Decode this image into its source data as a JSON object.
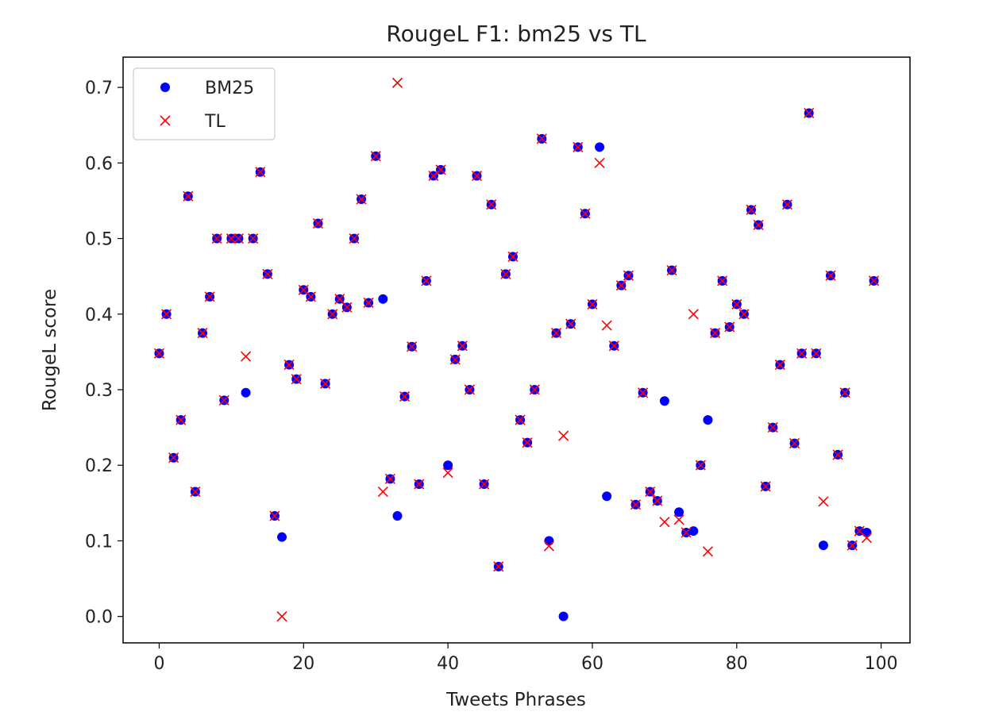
{
  "chart_data": {
    "type": "scatter",
    "title": "RougeL F1:  bm25 vs TL",
    "xlabel": "Tweets Phrases",
    "ylabel": "RougeL score",
    "xlim": [
      -5,
      104
    ],
    "ylim": [
      -0.035,
      0.74
    ],
    "xticks": [
      0,
      20,
      40,
      60,
      80,
      100
    ],
    "yticks": [
      0.0,
      0.1,
      0.2,
      0.3,
      0.4,
      0.5,
      0.6,
      0.7
    ],
    "ytick_labels": [
      "0.0",
      "0.1",
      "0.2",
      "0.3",
      "0.4",
      "0.5",
      "0.6",
      "0.7"
    ],
    "grid": false,
    "legend_position": "top-left",
    "series": [
      {
        "name": "BM25",
        "marker": "circle",
        "color": "#0000ff",
        "x": [
          0,
          1,
          2,
          3,
          4,
          5,
          6,
          7,
          8,
          9,
          10,
          11,
          12,
          13,
          14,
          15,
          16,
          17,
          18,
          19,
          20,
          21,
          22,
          23,
          24,
          25,
          26,
          27,
          28,
          29,
          30,
          31,
          32,
          33,
          34,
          35,
          36,
          37,
          38,
          39,
          40,
          41,
          42,
          43,
          44,
          45,
          46,
          47,
          48,
          49,
          50,
          51,
          52,
          53,
          54,
          55,
          56,
          57,
          58,
          59,
          60,
          61,
          62,
          63,
          64,
          65,
          66,
          67,
          68,
          69,
          70,
          71,
          72,
          73,
          74,
          75,
          76,
          77,
          78,
          79,
          80,
          81,
          82,
          83,
          84,
          85,
          86,
          87,
          88,
          89,
          90,
          91,
          92,
          93,
          94,
          95,
          96,
          97,
          98,
          99
        ],
        "y": [
          0.348,
          0.4,
          0.21,
          0.26,
          0.556,
          0.165,
          0.375,
          0.423,
          0.5,
          0.286,
          0.5,
          0.5,
          0.296,
          0.5,
          0.588,
          0.453,
          0.133,
          0.105,
          0.333,
          0.314,
          0.432,
          0.423,
          0.52,
          0.308,
          0.4,
          0.42,
          0.409,
          0.5,
          0.552,
          0.415,
          0.609,
          0.42,
          0.182,
          0.133,
          0.291,
          0.357,
          0.175,
          0.444,
          0.583,
          0.591,
          0.2,
          0.34,
          0.358,
          0.3,
          0.583,
          0.175,
          0.545,
          0.066,
          0.453,
          0.476,
          0.26,
          0.23,
          0.3,
          0.632,
          0.1,
          0.375,
          0.0,
          0.387,
          0.621,
          0.533,
          0.413,
          0.621,
          0.159,
          0.358,
          0.438,
          0.451,
          0.148,
          0.296,
          0.165,
          0.153,
          0.285,
          0.458,
          0.138,
          0.111,
          0.113,
          0.2,
          0.26,
          0.375,
          0.444,
          0.383,
          0.413,
          0.4,
          0.538,
          0.518,
          0.172,
          0.25,
          0.333,
          0.545,
          0.229,
          0.348,
          0.666,
          0.348,
          0.094,
          0.451,
          0.214,
          0.296,
          0.094,
          0.113,
          0.111,
          0.444
        ]
      },
      {
        "name": "TL",
        "marker": "x",
        "color": "#ff0000",
        "x": [
          0,
          1,
          2,
          3,
          4,
          5,
          6,
          7,
          8,
          9,
          10,
          11,
          12,
          13,
          14,
          15,
          16,
          17,
          18,
          19,
          20,
          21,
          22,
          23,
          24,
          25,
          26,
          27,
          28,
          29,
          30,
          31,
          32,
          33,
          34,
          35,
          36,
          37,
          38,
          39,
          40,
          41,
          42,
          43,
          44,
          45,
          46,
          47,
          48,
          49,
          50,
          51,
          52,
          53,
          54,
          55,
          56,
          57,
          58,
          59,
          60,
          61,
          62,
          63,
          64,
          65,
          66,
          67,
          68,
          69,
          70,
          71,
          72,
          73,
          74,
          75,
          76,
          77,
          78,
          79,
          80,
          81,
          82,
          83,
          84,
          85,
          86,
          87,
          88,
          89,
          90,
          91,
          92,
          93,
          94,
          95,
          96,
          97,
          98,
          99
        ],
        "y": [
          0.348,
          0.4,
          0.21,
          0.26,
          0.556,
          0.165,
          0.375,
          0.423,
          0.5,
          0.286,
          0.5,
          0.5,
          0.344,
          0.5,
          0.588,
          0.453,
          0.133,
          0.0,
          0.333,
          0.314,
          0.432,
          0.423,
          0.52,
          0.308,
          0.4,
          0.42,
          0.409,
          0.5,
          0.552,
          0.415,
          0.609,
          0.165,
          0.182,
          0.706,
          0.291,
          0.357,
          0.175,
          0.444,
          0.583,
          0.591,
          0.19,
          0.34,
          0.358,
          0.3,
          0.583,
          0.175,
          0.545,
          0.066,
          0.453,
          0.476,
          0.26,
          0.23,
          0.3,
          0.632,
          0.093,
          0.375,
          0.239,
          0.387,
          0.621,
          0.533,
          0.413,
          0.6,
          0.385,
          0.358,
          0.438,
          0.451,
          0.148,
          0.296,
          0.165,
          0.153,
          0.125,
          0.458,
          0.128,
          0.111,
          0.4,
          0.2,
          0.086,
          0.375,
          0.444,
          0.383,
          0.413,
          0.4,
          0.538,
          0.518,
          0.172,
          0.25,
          0.333,
          0.545,
          0.229,
          0.348,
          0.666,
          0.348,
          0.152,
          0.451,
          0.214,
          0.296,
          0.094,
          0.113,
          0.104,
          0.444
        ]
      }
    ]
  }
}
